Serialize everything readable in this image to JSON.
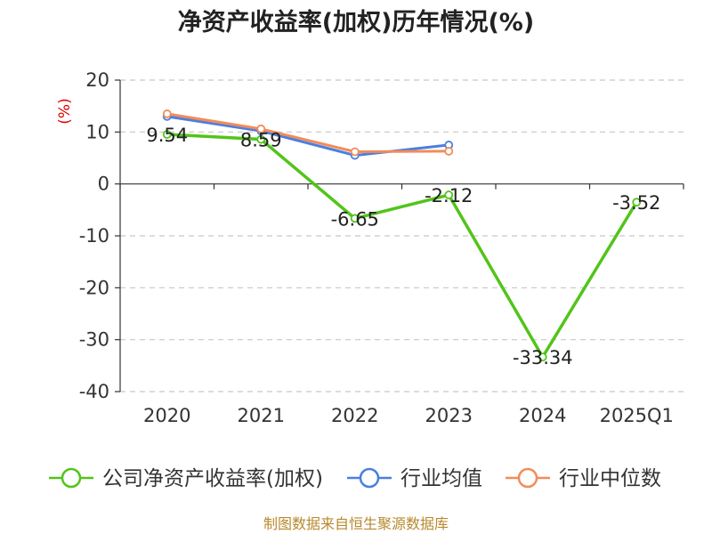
{
  "chart_data": {
    "type": "line",
    "title": "净资产收益率(加权)历年情况(%)",
    "ylabel": "(%)",
    "xlabel": "",
    "categories": [
      "2020",
      "2021",
      "2022",
      "2023",
      "2024",
      "2025Q1"
    ],
    "ylim": [
      -40,
      20
    ],
    "yticks": [
      20,
      10,
      0,
      -10,
      -20,
      -30,
      -40
    ],
    "grid": true,
    "legend_position": "bottom",
    "series": [
      {
        "name": "公司净资产收益率(加权)",
        "color": "#52c41a",
        "values": [
          9.54,
          8.59,
          -6.65,
          -2.12,
          -33.34,
          -3.52
        ],
        "labels": [
          "9.54",
          "8.59",
          "-6.65",
          "-2.12",
          "-33.34",
          "-3.52"
        ]
      },
      {
        "name": "行业均值",
        "color": "#4a7fe0",
        "values": [
          13.0,
          10.2,
          5.5,
          7.5,
          null,
          null
        ]
      },
      {
        "name": "行业中位数",
        "color": "#f28c5a",
        "values": [
          13.5,
          10.6,
          6.2,
          6.3,
          null,
          null
        ]
      }
    ]
  },
  "source": "制图数据来自恒生聚源数据库"
}
